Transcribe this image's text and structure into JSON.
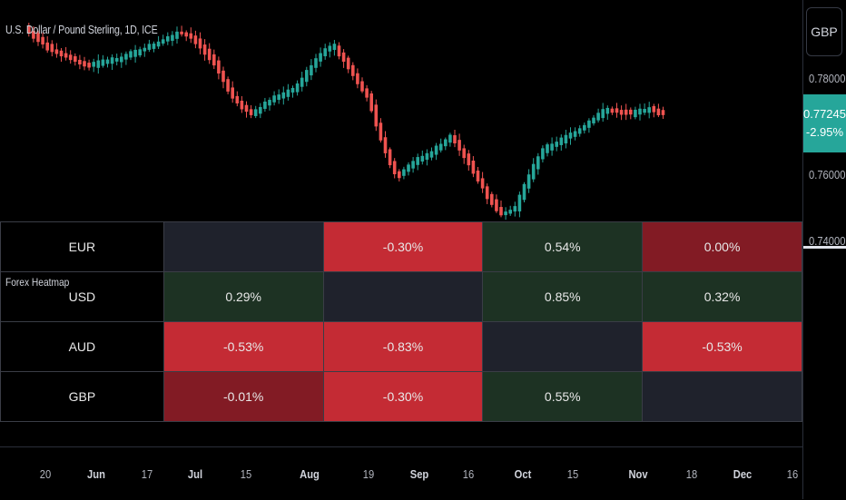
{
  "chart": {
    "title": "U.S. Dollar / Pound Sterling, 1D, ICE",
    "currency_button": "GBP",
    "price_scale": [
      "0.78000",
      "0.76000",
      "0.74000"
    ],
    "last_price": "0.77245",
    "change": "-2.95%",
    "colors": {
      "up": "#26a69a",
      "down": "#ef5350"
    }
  },
  "indicator": {
    "name": "Forex Heatmap"
  },
  "heatmap": {
    "rows": [
      {
        "label": "EUR",
        "cells": [
          {
            "value": "",
            "tone": "empty"
          },
          {
            "value": "-0.30%",
            "tone": "neg"
          },
          {
            "value": "0.54%",
            "tone": "pos"
          },
          {
            "value": "0.00%",
            "tone": "dneg"
          }
        ]
      },
      {
        "label": "USD",
        "cells": [
          {
            "value": "0.29%",
            "tone": "pos"
          },
          {
            "value": "",
            "tone": "empty"
          },
          {
            "value": "0.85%",
            "tone": "pos"
          },
          {
            "value": "0.32%",
            "tone": "pos"
          }
        ]
      },
      {
        "label": "AUD",
        "cells": [
          {
            "value": "-0.53%",
            "tone": "neg"
          },
          {
            "value": "-0.83%",
            "tone": "neg"
          },
          {
            "value": "",
            "tone": "empty"
          },
          {
            "value": "-0.53%",
            "tone": "neg"
          }
        ]
      },
      {
        "label": "GBP",
        "cells": [
          {
            "value": "-0.01%",
            "tone": "dneg"
          },
          {
            "value": "-0.30%",
            "tone": "neg"
          },
          {
            "value": "0.55%",
            "tone": "pos"
          },
          {
            "value": "",
            "tone": "empty"
          }
        ]
      }
    ],
    "colors": {
      "neg": "#c42b34",
      "dneg": "#821b24",
      "pos": "#1d3223",
      "empty": "#1f222c"
    }
  },
  "time_axis": {
    "ticks": [
      {
        "label": "20",
        "bold": false
      },
      {
        "label": "Jun",
        "bold": true
      },
      {
        "label": "17",
        "bold": false
      },
      {
        "label": "Jul",
        "bold": true
      },
      {
        "label": "15",
        "bold": false
      },
      {
        "label": "Aug",
        "bold": true
      },
      {
        "label": "19",
        "bold": false
      },
      {
        "label": "Sep",
        "bold": true
      },
      {
        "label": "16",
        "bold": false
      },
      {
        "label": "Oct",
        "bold": true
      },
      {
        "label": "15",
        "bold": false
      },
      {
        "label": "Nov",
        "bold": true
      },
      {
        "label": "18",
        "bold": false
      },
      {
        "label": "Dec",
        "bold": true
      },
      {
        "label": "16",
        "bold": false
      }
    ]
  }
}
